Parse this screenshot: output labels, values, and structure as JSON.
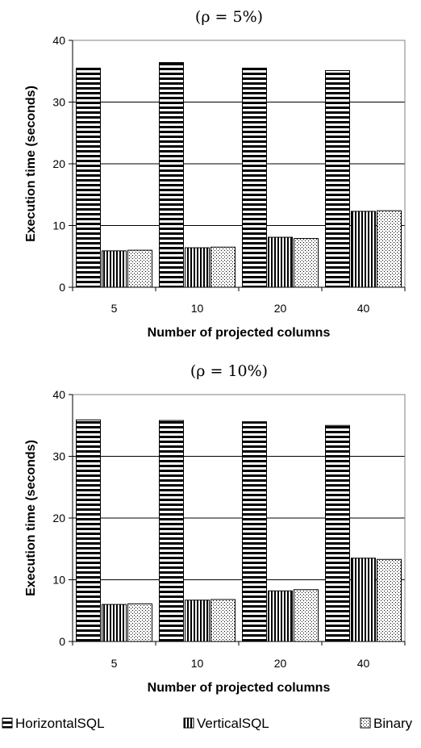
{
  "legend": {
    "items": [
      {
        "name": "HorizontalSQL",
        "pattern": "horizontal-stripes"
      },
      {
        "name": "VerticalSQL",
        "pattern": "vertical-stripes"
      },
      {
        "name": "Binary",
        "pattern": "dots"
      }
    ]
  },
  "chart_data": [
    {
      "type": "bar",
      "title": "(ρ  = 5%)",
      "xlabel": "Number of projected columns",
      "ylabel": "Execution time (seconds)",
      "categories": [
        "5",
        "10",
        "20",
        "40"
      ],
      "ylim": [
        0,
        40
      ],
      "yticks": [
        0,
        10,
        20,
        30,
        40
      ],
      "grid": true,
      "series": [
        {
          "name": "HorizontalSQL",
          "values": [
            35.5,
            36.4,
            35.5,
            35.1
          ]
        },
        {
          "name": "VerticalSQL",
          "values": [
            5.9,
            6.4,
            8.1,
            12.3
          ]
        },
        {
          "name": "Binary",
          "values": [
            6.0,
            6.5,
            7.9,
            12.4
          ]
        }
      ]
    },
    {
      "type": "bar",
      "title": "(ρ  = 10%)",
      "xlabel": "Number of projected columns",
      "ylabel": "Execution time (seconds)",
      "categories": [
        "5",
        "10",
        "20",
        "40"
      ],
      "ylim": [
        0,
        40
      ],
      "yticks": [
        0,
        10,
        20,
        30,
        40
      ],
      "grid": true,
      "series": [
        {
          "name": "HorizontalSQL",
          "values": [
            35.9,
            35.8,
            35.6,
            35.0
          ]
        },
        {
          "name": "VerticalSQL",
          "values": [
            6.0,
            6.7,
            8.2,
            13.5
          ]
        },
        {
          "name": "Binary",
          "values": [
            6.1,
            6.8,
            8.4,
            13.3
          ]
        }
      ]
    }
  ]
}
